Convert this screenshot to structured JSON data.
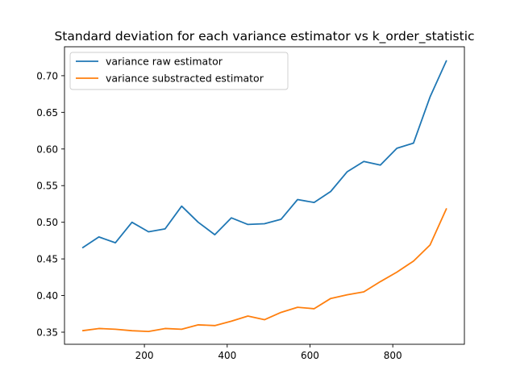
{
  "chart_data": {
    "type": "line",
    "title": "Standard deviation for each variance estimator vs k_order_statistic",
    "xlabel": "",
    "ylabel": "",
    "xlim": [
      7,
      973
    ],
    "ylim": [
      0.3335,
      0.7395
    ],
    "xticks": [
      200,
      400,
      600,
      800
    ],
    "yticks": [
      0.35,
      0.4,
      0.45,
      0.5,
      0.55,
      0.6,
      0.65,
      0.7
    ],
    "xtick_labels": [
      "200",
      "400",
      "600",
      "800"
    ],
    "ytick_labels": [
      "0.35",
      "0.40",
      "0.45",
      "0.50",
      "0.55",
      "0.60",
      "0.65",
      "0.70"
    ],
    "grid": false,
    "legend": "top-left",
    "x": [
      50,
      90,
      130,
      170,
      210,
      250,
      290,
      330,
      370,
      410,
      450,
      490,
      530,
      570,
      610,
      650,
      690,
      730,
      770,
      810,
      850,
      890,
      930
    ],
    "series": [
      {
        "name": "variance raw estimator",
        "color": "#1f77b4",
        "values": [
          0.465,
          0.48,
          0.472,
          0.5,
          0.487,
          0.491,
          0.522,
          0.5,
          0.483,
          0.506,
          0.497,
          0.498,
          0.504,
          0.531,
          0.527,
          0.542,
          0.569,
          0.583,
          0.578,
          0.601,
          0.608,
          0.671,
          0.721
        ]
      },
      {
        "name": "variance substracted estimator",
        "color": "#ff7f0e",
        "values": [
          0.352,
          0.355,
          0.354,
          0.352,
          0.351,
          0.355,
          0.354,
          0.36,
          0.359,
          0.365,
          0.372,
          0.367,
          0.377,
          0.384,
          0.382,
          0.396,
          0.401,
          0.405,
          0.419,
          0.432,
          0.447,
          0.469,
          0.519
        ]
      }
    ]
  }
}
